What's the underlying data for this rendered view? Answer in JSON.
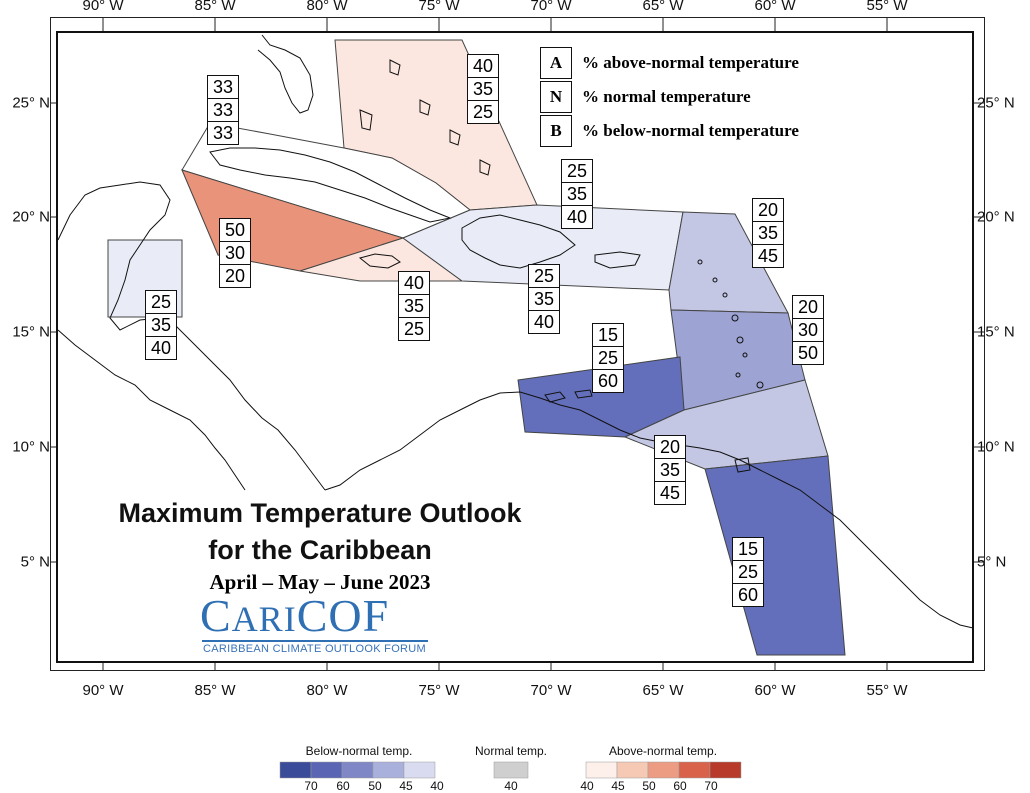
{
  "title": "Maximum Temperature Outlook",
  "title2": "for the Caribbean",
  "subtitle": "April – May – June 2023",
  "logo": {
    "name": "CariCOF",
    "tagline": "CARIBBEAN CLIMATE OUTLOOK FORUM"
  },
  "axes": {
    "lon_labels": [
      "90° W",
      "85° W",
      "80° W",
      "75° W",
      "70° W",
      "65° W",
      "60° W",
      "55° W"
    ],
    "lat_labels": [
      "25° N",
      "20° N",
      "15° N",
      "10° N",
      "5° N"
    ]
  },
  "legend_key": [
    {
      "key": "A",
      "text": "% above-normal temperature"
    },
    {
      "key": "N",
      "text": "% normal temperature"
    },
    {
      "key": "B",
      "text": "% below-normal temperature"
    }
  ],
  "regions": [
    {
      "id": "bahamas",
      "probs": [
        "40",
        "35",
        "25"
      ],
      "color": "#fbe7df"
    },
    {
      "id": "cuba-north",
      "probs": [
        "33",
        "33",
        "33"
      ],
      "color": "#ffffff"
    },
    {
      "id": "western-caribbean",
      "probs": [
        "50",
        "30",
        "20"
      ],
      "color": "#e8937a"
    },
    {
      "id": "jamaica",
      "probs": [
        "40",
        "35",
        "25"
      ],
      "color": "#fbe7df"
    },
    {
      "id": "hispaniola-north",
      "probs": [
        "25",
        "35",
        "40"
      ],
      "color": "#e9ecf6"
    },
    {
      "id": "hispaniola-pr",
      "probs": [
        "25",
        "35",
        "40"
      ],
      "color": "#e9ecf6"
    },
    {
      "id": "belize",
      "probs": [
        "25",
        "35",
        "40"
      ],
      "color": "#e9ecf6"
    },
    {
      "id": "leeward-islands",
      "probs": [
        "20",
        "35",
        "45"
      ],
      "color": "#c3c7e3"
    },
    {
      "id": "windward-islands",
      "probs": [
        "20",
        "30",
        "50"
      ],
      "color": "#9da3d2"
    },
    {
      "id": "abc-islands",
      "probs": [
        "15",
        "25",
        "60"
      ],
      "color": "#636fbb"
    },
    {
      "id": "trinidad",
      "probs": [
        "20",
        "35",
        "45"
      ],
      "color": "#c3c7e3"
    },
    {
      "id": "guianas",
      "probs": [
        "15",
        "25",
        "60"
      ],
      "color": "#636fbb"
    }
  ],
  "colorbar": {
    "below": {
      "title": "Below-normal temp.",
      "ticks": [
        "70",
        "60",
        "50",
        "45",
        "40"
      ],
      "colors": [
        "#3a4b9a",
        "#5a66b4",
        "#7f87c6",
        "#aab0dc",
        "#d9dcf0",
        "#eef0fa"
      ]
    },
    "normal": {
      "title": "Normal temp.",
      "ticks": [
        "40"
      ],
      "colors": [
        "#cfcfcf"
      ]
    },
    "above": {
      "title": "Above-normal temp.",
      "ticks": [
        "40",
        "45",
        "50",
        "60",
        "70"
      ],
      "colors": [
        "#fdf0ea",
        "#f6c9b4",
        "#ec9c82",
        "#d9624a",
        "#b83a2a"
      ]
    }
  }
}
